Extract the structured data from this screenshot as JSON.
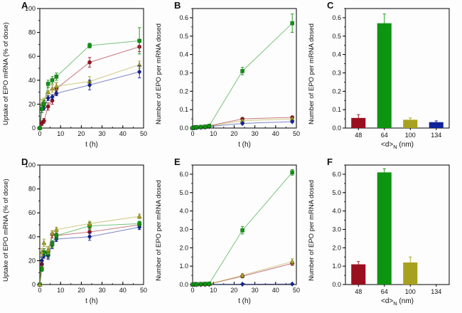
{
  "figure": {
    "background": "#ffffff",
    "series_colors": {
      "dark_red": "#9a0f1e",
      "green": "#0d9410",
      "olive": "#a8a11f",
      "blue": "#10239b"
    }
  },
  "chart_data": [
    {
      "panel": "A",
      "type": "line",
      "title": "",
      "xlabel": "t (h)",
      "ylabel": "Uptake of EPO mRNA (% of dose)",
      "xlim": [
        0,
        50
      ],
      "ylim": [
        0,
        100
      ],
      "xticks": [
        0,
        10,
        20,
        30,
        40,
        50
      ],
      "yticks": [
        0,
        20,
        40,
        60,
        80,
        100
      ],
      "ydecimals": 0,
      "xminor": 5,
      "yminor": 10,
      "x": [
        0,
        1,
        2,
        4,
        6,
        8,
        24,
        48
      ],
      "series": [
        {
          "name": "dark-red-circles",
          "marker": "circle",
          "color": "#9a0f1e",
          "values": [
            0,
            4,
            6,
            18,
            23,
            33,
            55,
            68
          ],
          "errors": [
            0,
            2,
            2,
            3,
            3,
            5,
            4,
            4
          ]
        },
        {
          "name": "olive-triangles",
          "marker": "triangle",
          "color": "#a8a11f",
          "values": [
            0,
            20,
            22,
            30,
            33,
            35,
            39,
            53
          ],
          "errors": [
            0,
            4,
            3,
            4,
            3,
            3,
            4,
            3
          ]
        },
        {
          "name": "blue-diamonds",
          "marker": "diamond",
          "color": "#10239b",
          "values": [
            0,
            16,
            17,
            25,
            26,
            29,
            36,
            47
          ],
          "errors": [
            0,
            3,
            2,
            2,
            2,
            2,
            4,
            5
          ]
        },
        {
          "name": "green-squares",
          "marker": "square",
          "color": "#0d9410",
          "values": [
            0,
            16,
            20,
            37,
            40,
            43,
            69,
            73
          ],
          "errors": [
            0,
            3,
            3,
            3,
            3,
            3,
            2,
            11
          ]
        }
      ]
    },
    {
      "panel": "B",
      "type": "line",
      "title": "",
      "xlabel": "t (h)",
      "ylabel": "Number of EPO per mRNA dosed",
      "xlim": [
        0,
        50
      ],
      "ylim": [
        0,
        0.65
      ],
      "xticks": [
        0,
        10,
        20,
        30,
        40,
        50
      ],
      "yticks": [
        0,
        0.1,
        0.2,
        0.3,
        0.4,
        0.5,
        0.6
      ],
      "ydecimals": 1,
      "xminor": 5,
      "yminor": 0.05,
      "x": [
        0,
        1,
        2,
        4,
        6,
        8,
        24,
        48
      ],
      "series": [
        {
          "name": "dark-red-circles",
          "marker": "circle",
          "color": "#9a0f1e",
          "values": [
            0,
            0.003,
            0.004,
            0.005,
            0.007,
            0.012,
            0.05,
            0.058
          ],
          "errors": [
            0,
            0,
            0,
            0,
            0,
            0,
            0.005,
            0.006
          ]
        },
        {
          "name": "olive-triangles",
          "marker": "triangle",
          "color": "#a8a11f",
          "values": [
            0,
            0.003,
            0.004,
            0.005,
            0.006,
            0.01,
            0.04,
            0.05
          ],
          "errors": [
            0,
            0,
            0,
            0,
            0,
            0,
            0.004,
            0.005
          ]
        },
        {
          "name": "blue-diamonds",
          "marker": "diamond",
          "color": "#10239b",
          "values": [
            0,
            0.002,
            0.003,
            0.004,
            0.005,
            0.008,
            0.025,
            0.035
          ],
          "errors": [
            0,
            0,
            0,
            0,
            0,
            0,
            0.004,
            0.004
          ]
        },
        {
          "name": "green-squares",
          "marker": "square",
          "color": "#0d9410",
          "values": [
            0,
            0.004,
            0.005,
            0.006,
            0.008,
            0.012,
            0.31,
            0.57
          ],
          "errors": [
            0,
            0,
            0,
            0,
            0,
            0,
            0.02,
            0.05
          ]
        }
      ]
    },
    {
      "panel": "C",
      "type": "bar",
      "title": "",
      "xlabel_pre": "<d>",
      "xlabel_sub": "N",
      "xlabel_post": " (nm)",
      "ylabel": "Number of EPO per mRNA dosed",
      "ylim": [
        0,
        0.65
      ],
      "yticks": [
        0,
        0.1,
        0.2,
        0.3,
        0.4,
        0.5,
        0.6
      ],
      "ydecimals": 1,
      "yminor": 0.05,
      "categories": [
        "48",
        "64",
        "100",
        "134"
      ],
      "values": [
        0.055,
        0.57,
        0.045,
        0.032
      ],
      "errors": [
        0.018,
        0.05,
        0.01,
        0.007
      ],
      "colors": [
        "#9a0f1e",
        "#0d9410",
        "#a8a11f",
        "#10239b"
      ]
    },
    {
      "panel": "D",
      "type": "line",
      "title": "",
      "xlabel": "t (h)",
      "ylabel": "Uptake of EPO mRNA (% of dose)",
      "xlim": [
        0,
        50
      ],
      "ylim": [
        0,
        100
      ],
      "xticks": [
        0,
        10,
        20,
        30,
        40,
        50
      ],
      "yticks": [
        0,
        20,
        40,
        60,
        80,
        100
      ],
      "ydecimals": 0,
      "xminor": 5,
      "yminor": 10,
      "x": [
        0,
        1,
        2,
        4,
        6,
        8,
        24,
        48
      ],
      "series": [
        {
          "name": "dark-red-circles",
          "marker": "circle",
          "color": "#9a0f1e",
          "values": [
            0,
            17,
            27,
            25,
            42,
            41,
            44,
            50
          ],
          "errors": [
            0,
            3,
            3,
            3,
            3,
            2,
            3,
            2
          ]
        },
        {
          "name": "blue-diamonds",
          "marker": "diamond",
          "color": "#10239b",
          "values": [
            0,
            20,
            24,
            24,
            33,
            38,
            40,
            48
          ],
          "errors": [
            0,
            3,
            2,
            3,
            3,
            2,
            3,
            2
          ]
        },
        {
          "name": "green-squares",
          "marker": "square",
          "color": "#0d9410",
          "values": [
            0,
            13,
            27,
            26,
            34,
            41,
            49,
            51
          ],
          "errors": [
            0,
            2,
            3,
            3,
            3,
            3,
            3,
            2
          ]
        },
        {
          "name": "olive-triangles",
          "marker": "triangle",
          "color": "#a8a11f",
          "values": [
            0,
            27,
            35,
            29,
            43,
            46,
            51,
            57
          ],
          "errors": [
            0,
            3,
            3,
            3,
            2,
            2,
            2,
            2
          ]
        }
      ]
    },
    {
      "panel": "E",
      "type": "line",
      "title": "",
      "xlabel": "t (h)",
      "ylabel": "Number of EPO per mRNA dosed",
      "xlim": [
        0,
        50
      ],
      "ylim": [
        0,
        6.5
      ],
      "xticks": [
        0,
        10,
        20,
        30,
        40,
        50
      ],
      "yticks": [
        0,
        1,
        2,
        3,
        4,
        5,
        6
      ],
      "ydecimals": 1,
      "xminor": 5,
      "yminor": 0.5,
      "x": [
        0,
        1,
        2,
        4,
        6,
        8,
        24,
        48
      ],
      "series": [
        {
          "name": "blue-diamonds",
          "marker": "diamond",
          "color": "#10239b",
          "values": [
            0,
            0,
            0,
            0,
            0,
            0.01,
            0.02,
            0.03
          ],
          "errors": [
            0,
            0,
            0,
            0,
            0,
            0,
            0,
            0
          ]
        },
        {
          "name": "dark-red-circles",
          "marker": "circle",
          "color": "#9a0f1e",
          "values": [
            0,
            0.01,
            0.01,
            0.02,
            0.02,
            0.03,
            0.45,
            1.15
          ],
          "errors": [
            0,
            0,
            0,
            0,
            0,
            0,
            0.08,
            0.1
          ]
        },
        {
          "name": "olive-triangles",
          "marker": "triangle",
          "color": "#a8a11f",
          "values": [
            0,
            0.01,
            0.01,
            0.02,
            0.02,
            0.03,
            0.5,
            1.25
          ],
          "errors": [
            0,
            0,
            0,
            0,
            0,
            0,
            0.1,
            0.15
          ]
        },
        {
          "name": "green-squares",
          "marker": "square",
          "color": "#0d9410",
          "values": [
            0,
            0.02,
            0.02,
            0.03,
            0.04,
            0.05,
            2.95,
            6.1
          ],
          "errors": [
            0,
            0,
            0,
            0,
            0,
            0,
            0.2,
            0.15
          ]
        }
      ]
    },
    {
      "panel": "F",
      "type": "bar",
      "title": "",
      "xlabel_pre": "<d>",
      "xlabel_sub": "N",
      "xlabel_post": " (nm)",
      "ylabel": "Number of EPO per mRNA dosed",
      "ylim": [
        0,
        6.5
      ],
      "yticks": [
        0,
        1,
        2,
        3,
        4,
        5,
        6
      ],
      "ydecimals": 1,
      "yminor": 0.5,
      "categories": [
        "48",
        "64",
        "100",
        "134"
      ],
      "values": [
        1.1,
        6.1,
        1.2,
        0
      ],
      "errors": [
        0.15,
        0.2,
        0.3,
        0
      ],
      "colors": [
        "#9a0f1e",
        "#0d9410",
        "#a8a11f",
        "#10239b"
      ]
    }
  ]
}
